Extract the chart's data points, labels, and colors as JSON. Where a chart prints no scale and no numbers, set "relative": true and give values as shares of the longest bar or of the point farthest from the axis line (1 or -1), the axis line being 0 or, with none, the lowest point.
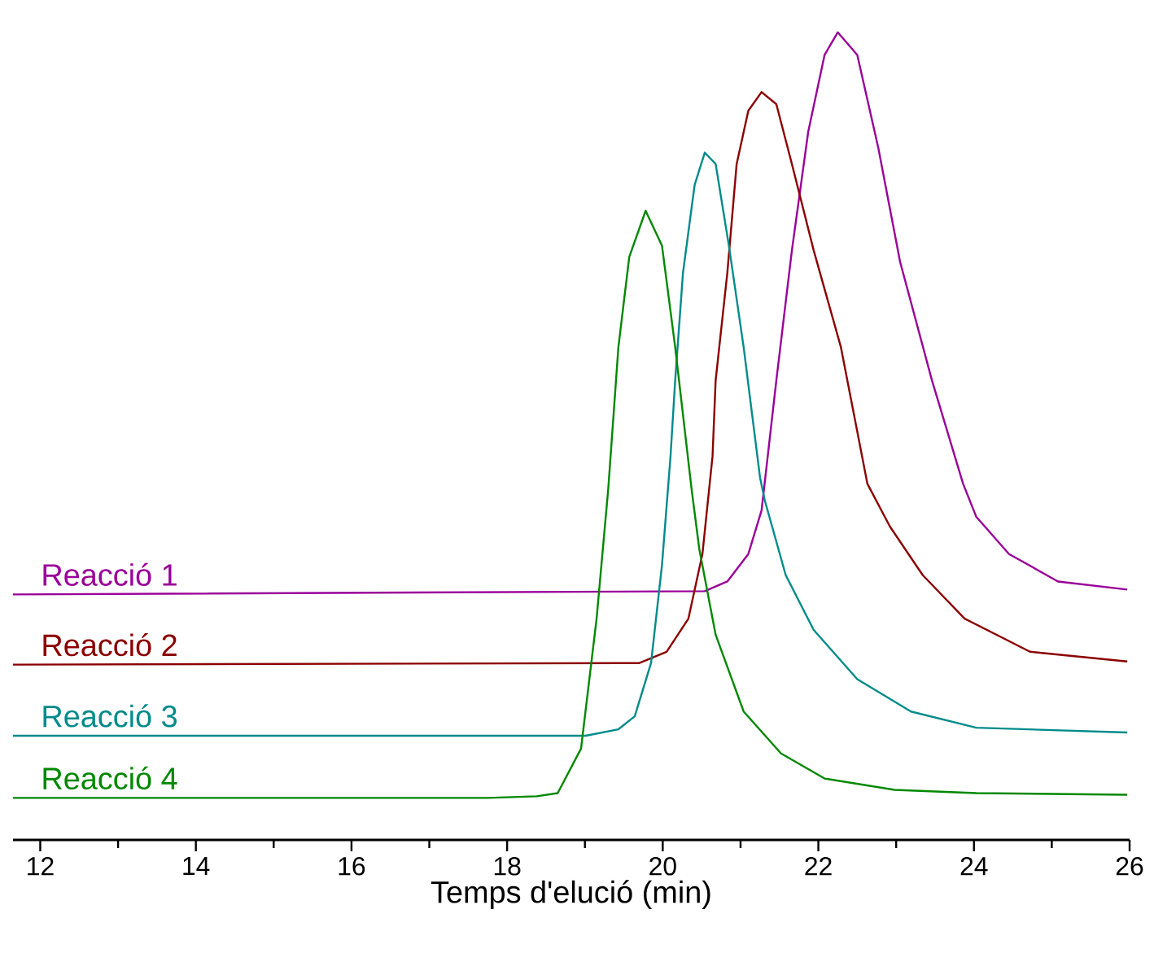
{
  "chart_data": {
    "type": "line",
    "xlabel": "Temps d'elució (min)",
    "relative": true,
    "xlim": [
      11.65,
      26
    ],
    "xticks": [
      12,
      14,
      16,
      18,
      20,
      22,
      24,
      26
    ],
    "series": [
      {
        "name": "Reacció 1",
        "color": "#990099",
        "x": [
          11.65,
          20.54,
          20.83,
          21.1,
          21.27,
          21.46,
          21.66,
          21.87,
          22.08,
          22.25,
          22.5,
          22.77,
          23.05,
          23.46,
          23.86,
          24.03,
          24.45,
          25.08,
          25.97
        ],
        "values": [
          0.304,
          0.308,
          0.32,
          0.354,
          0.408,
          0.569,
          0.73,
          0.877,
          0.972,
          1.0,
          0.972,
          0.857,
          0.716,
          0.569,
          0.441,
          0.4,
          0.354,
          0.32,
          0.31
        ]
      },
      {
        "name": "Reacció 2",
        "color": "#8b0000",
        "x": [
          11.65,
          19.7,
          20.05,
          20.33,
          20.51,
          20.64,
          20.68,
          20.83,
          20.95,
          21.1,
          21.27,
          21.46,
          21.66,
          21.94,
          22.29,
          22.63,
          22.92,
          23.34,
          23.88,
          24.72,
          25.97
        ],
        "values": [
          0.217,
          0.219,
          0.233,
          0.274,
          0.354,
          0.475,
          0.569,
          0.702,
          0.837,
          0.903,
          0.926,
          0.911,
          0.837,
          0.73,
          0.61,
          0.441,
          0.388,
          0.328,
          0.274,
          0.233,
          0.221
        ]
      },
      {
        "name": "Reacció 3",
        "color": "#008b8b",
        "x": [
          11.65,
          19.01,
          19.43,
          19.64,
          19.85,
          19.99,
          20.1,
          20.16,
          20.26,
          20.41,
          20.54,
          20.68,
          20.85,
          21.04,
          21.25,
          21.31,
          21.58,
          21.94,
          22.5,
          23.19,
          24.03,
          25.97
        ],
        "values": [
          0.129,
          0.129,
          0.137,
          0.153,
          0.219,
          0.34,
          0.475,
          0.569,
          0.702,
          0.811,
          0.851,
          0.837,
          0.736,
          0.61,
          0.449,
          0.421,
          0.328,
          0.26,
          0.199,
          0.159,
          0.139,
          0.133
        ]
      },
      {
        "name": "Reacció 4",
        "color": "#008800",
        "x": [
          11.65,
          17.75,
          18.38,
          18.65,
          18.95,
          19.15,
          19.3,
          19.43,
          19.57,
          19.78,
          19.99,
          20.16,
          20.37,
          20.47,
          20.68,
          21.04,
          21.52,
          22.08,
          22.98,
          24.03,
          25.97
        ],
        "values": [
          0.052,
          0.052,
          0.054,
          0.058,
          0.113,
          0.274,
          0.435,
          0.61,
          0.722,
          0.779,
          0.736,
          0.61,
          0.435,
          0.36,
          0.254,
          0.159,
          0.107,
          0.076,
          0.062,
          0.058,
          0.056
        ]
      }
    ]
  }
}
